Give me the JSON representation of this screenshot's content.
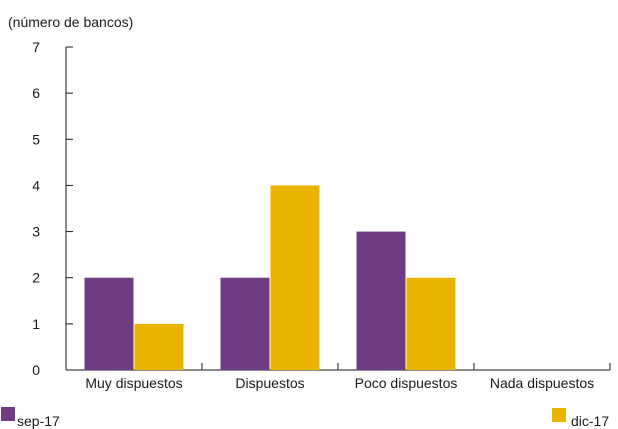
{
  "chart_data": {
    "type": "bar",
    "ylabel": "(número de bancos)",
    "categories": [
      "Muy dispuestos",
      "Dispuestos",
      "Poco dispuestos",
      "Nada dispuestos"
    ],
    "series": [
      {
        "name": "sep-17",
        "color": "#6f3c83",
        "values": [
          2,
          2,
          3,
          0
        ]
      },
      {
        "name": "dic-17",
        "color": "#e8b400",
        "values": [
          1,
          4,
          2,
          0
        ]
      }
    ],
    "ylim": [
      0,
      7
    ],
    "yticks": [
      "0",
      "1",
      "2",
      "3",
      "4",
      "5",
      "6",
      "7"
    ],
    "grid": false,
    "legend": "bottom"
  }
}
